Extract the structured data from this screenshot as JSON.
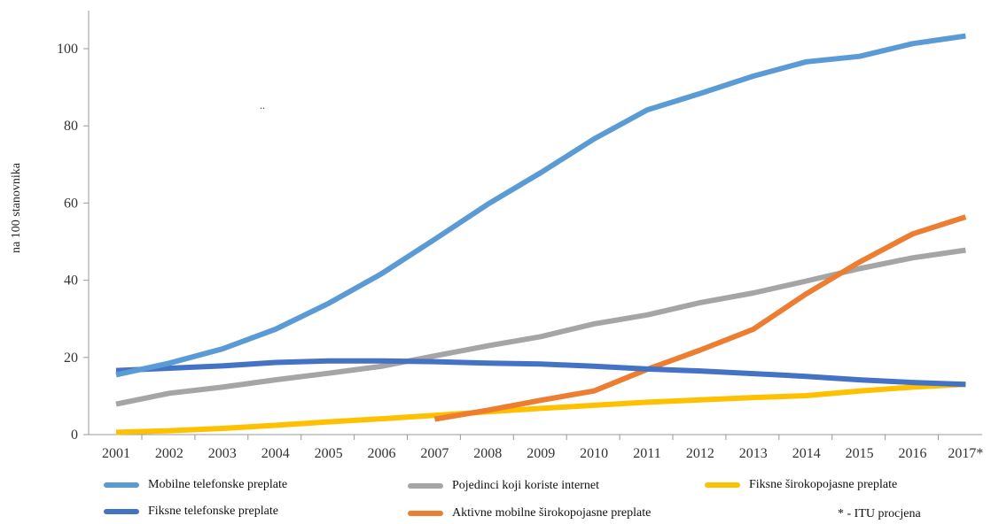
{
  "chart_data": {
    "type": "line",
    "ylabel": "na 100 stanovnika",
    "xlabel": "",
    "ylim": [
      0,
      110
    ],
    "yticks": [
      0,
      20,
      40,
      60,
      80,
      100
    ],
    "categories": [
      "2001",
      "2002",
      "2003",
      "2004",
      "2005",
      "2006",
      "2007",
      "2008",
      "2009",
      "2010",
      "2011",
      "2012",
      "2013",
      "2014",
      "2015",
      "2016",
      "2017*"
    ],
    "grid": false,
    "series": [
      {
        "name": "Mobilne telefonske preplate",
        "color": "#5B9BD5",
        "values": [
          15.5,
          18.5,
          22.2,
          27.3,
          34.0,
          41.7,
          50.6,
          59.7,
          67.9,
          76.6,
          84.1,
          88.4,
          92.9,
          96.6,
          98.0,
          101.3,
          103.3
        ]
      },
      {
        "name": "Fiksne telefonske preplate",
        "color": "#4472C4",
        "values": [
          16.6,
          17.2,
          17.8,
          18.7,
          19.1,
          19.1,
          18.9,
          18.5,
          18.3,
          17.7,
          17.0,
          16.5,
          15.8,
          15.1,
          14.2,
          13.5,
          13.0
        ]
      },
      {
        "name": "Pojedinci koji koriste internet",
        "color": "#A5A5A5",
        "values": [
          7.9,
          10.7,
          12.3,
          14.2,
          15.9,
          17.7,
          20.4,
          23.0,
          25.4,
          28.7,
          31.0,
          34.2,
          36.7,
          39.8,
          43.0,
          45.8,
          47.8
        ]
      },
      {
        "name": "Aktivne mobilne širokopojasne preplate",
        "color": "#ED7D31",
        "values": [
          null,
          null,
          null,
          null,
          null,
          null,
          4.0,
          6.3,
          8.9,
          11.3,
          16.9,
          21.9,
          27.3,
          36.5,
          44.7,
          52.0,
          56.4
        ]
      },
      {
        "name": "Fiksne širokopojasne preplate",
        "color": "#FFC000",
        "values": [
          0.6,
          1.0,
          1.6,
          2.4,
          3.3,
          4.1,
          5.0,
          5.9,
          6.8,
          7.6,
          8.4,
          9.0,
          9.6,
          10.1,
          11.3,
          12.3,
          13.0
        ]
      }
    ]
  },
  "note": "* - ITU procjena",
  "stray_mark": ".."
}
